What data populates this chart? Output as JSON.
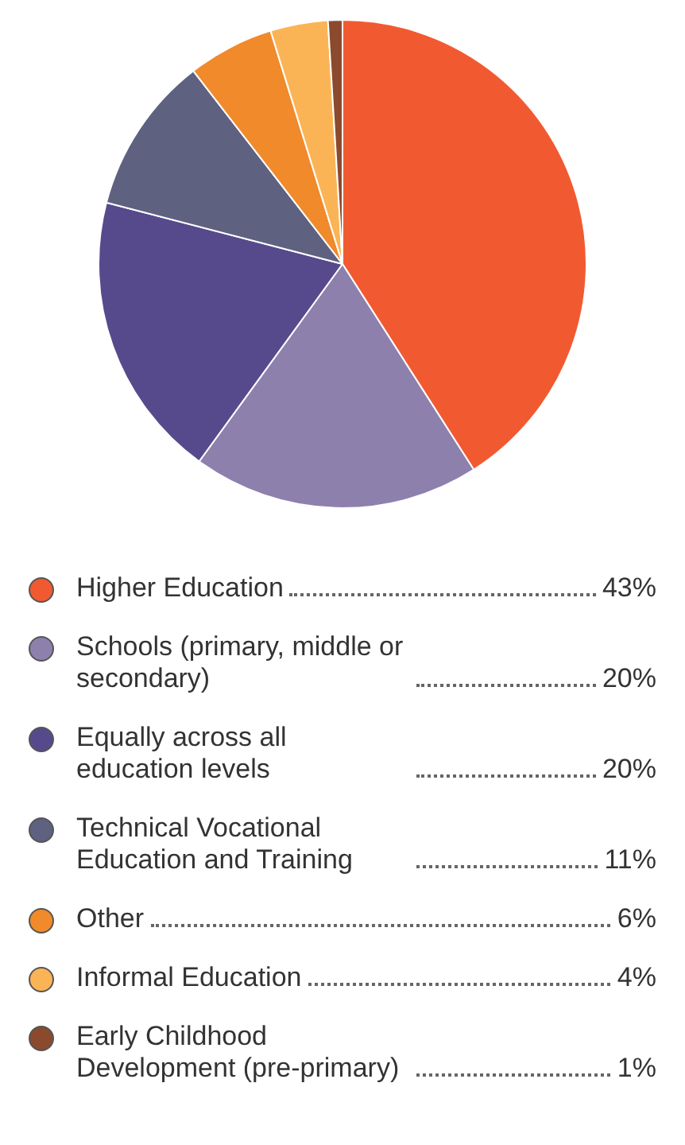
{
  "chart_data": {
    "type": "pie",
    "categories": [
      "Higher Education",
      "Schools (primary, middle or secondary)",
      "Equally across all education levels",
      "Technical Vocational Education and Training",
      "Other",
      "Informal Education",
      "Early Childhood Development (pre-primary)"
    ],
    "values": [
      43,
      20,
      20,
      11,
      6,
      4,
      1
    ],
    "colors": [
      "#f15a31",
      "#8e80ad",
      "#574a8c",
      "#5e6180",
      "#f08a2a",
      "#fbb455",
      "#8b4a2e"
    ],
    "value_labels": [
      "43%",
      "20%",
      "20%",
      "11%",
      "6%",
      "4%",
      "1%"
    ],
    "legend": "bottom"
  }
}
